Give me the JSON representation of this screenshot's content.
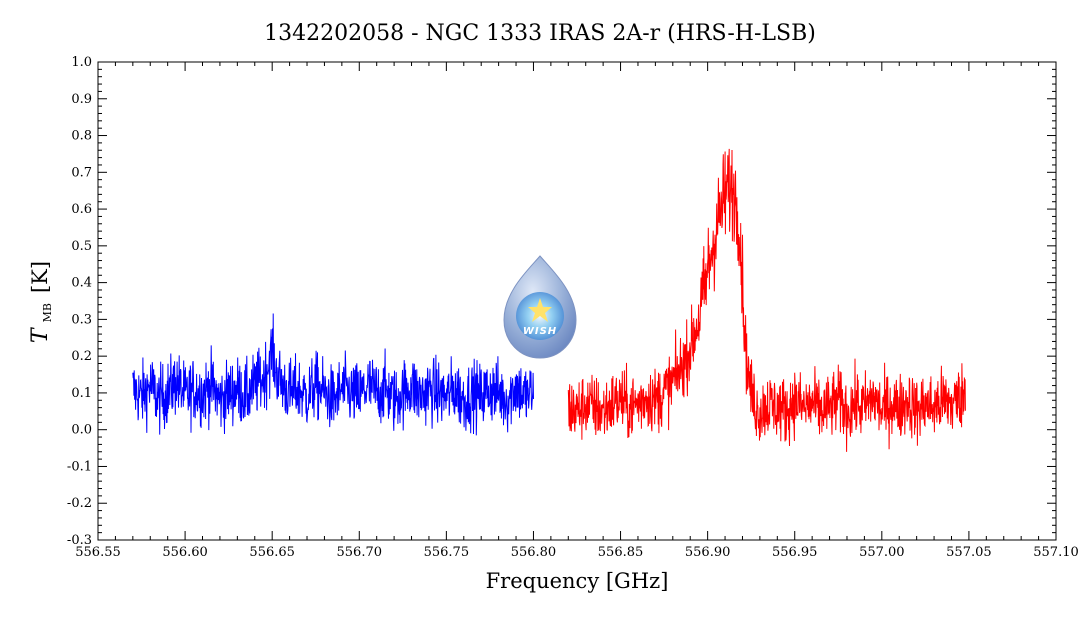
{
  "chart_data": {
    "type": "line",
    "title": "1342202058 - NGC 1333 IRAS 2A-r (HRS-H-LSB)",
    "xlabel": "Frequency [GHz]",
    "ylabel": {
      "main": "T",
      "sub": "MB",
      "unit": "[K]"
    },
    "xlim": [
      556.55,
      557.1
    ],
    "ylim": [
      -0.3,
      1.0
    ],
    "xticks": [
      "556.55",
      "556.60",
      "556.65",
      "556.70",
      "556.75",
      "556.80",
      "556.85",
      "556.90",
      "556.95",
      "557.00",
      "557.05",
      "557.10"
    ],
    "yticks": [
      "-0.3",
      "-0.2",
      "-0.1",
      "0.0",
      "0.1",
      "0.2",
      "0.3",
      "0.4",
      "0.5",
      "0.6",
      "0.7",
      "0.8",
      "0.9",
      "1.0"
    ],
    "grid": false,
    "series": [
      {
        "color": "#0000ff",
        "x": [
          556.57,
          556.575,
          556.58,
          556.585,
          556.59,
          556.595,
          556.6,
          556.605,
          556.61,
          556.615,
          556.62,
          556.625,
          556.63,
          556.635,
          556.64,
          556.645,
          556.648,
          556.65,
          556.652,
          556.655,
          556.66,
          556.665,
          556.67,
          556.675,
          556.68,
          556.685,
          556.69,
          556.695,
          556.7,
          556.705,
          556.71,
          556.715,
          556.72,
          556.725,
          556.73,
          556.735,
          556.74,
          556.745,
          556.75,
          556.755,
          556.76,
          556.765,
          556.77,
          556.775,
          556.78,
          556.785,
          556.79,
          556.795,
          556.8
        ],
        "y": [
          0.11,
          0.09,
          0.12,
          0.08,
          0.1,
          0.13,
          0.09,
          0.11,
          0.1,
          0.12,
          0.08,
          0.1,
          0.11,
          0.09,
          0.12,
          0.14,
          0.18,
          0.22,
          0.16,
          0.13,
          0.1,
          0.11,
          0.09,
          0.12,
          0.1,
          0.08,
          0.11,
          0.1,
          0.09,
          0.12,
          0.1,
          0.11,
          0.08,
          0.1,
          0.12,
          0.09,
          0.11,
          0.1,
          0.09,
          0.11,
          0.08,
          0.1,
          0.09,
          0.11,
          0.1,
          0.08,
          0.12,
          0.09,
          0.1
        ]
      },
      {
        "color": "#ff0000",
        "x": [
          556.82,
          556.825,
          556.83,
          556.835,
          556.84,
          556.845,
          556.85,
          556.855,
          556.86,
          556.865,
          556.87,
          556.875,
          556.88,
          556.885,
          556.89,
          556.895,
          556.898,
          556.9,
          556.903,
          556.905,
          556.908,
          556.91,
          556.913,
          556.915,
          556.918,
          556.92,
          556.922,
          556.925,
          556.928,
          556.93,
          556.935,
          556.94,
          556.945,
          556.95,
          556.955,
          556.96,
          556.965,
          556.97,
          556.975,
          556.98,
          556.985,
          556.99,
          556.995,
          557.0,
          557.005,
          557.01,
          557.015,
          557.02,
          557.025,
          557.03,
          557.035,
          557.04,
          557.045,
          557.048
        ],
        "y": [
          0.06,
          0.05,
          0.07,
          0.06,
          0.05,
          0.07,
          0.08,
          0.06,
          0.07,
          0.09,
          0.08,
          0.1,
          0.13,
          0.17,
          0.22,
          0.3,
          0.37,
          0.43,
          0.5,
          0.55,
          0.6,
          0.64,
          0.66,
          0.65,
          0.58,
          0.4,
          0.2,
          0.1,
          0.06,
          0.05,
          0.07,
          0.06,
          0.05,
          0.08,
          0.06,
          0.07,
          0.05,
          0.06,
          0.08,
          0.05,
          0.07,
          0.06,
          0.09,
          0.05,
          0.07,
          0.06,
          0.08,
          0.05,
          0.07,
          0.06,
          0.08,
          0.07,
          0.09,
          0.1
        ]
      }
    ]
  },
  "logo": {
    "text": "WISH"
  }
}
